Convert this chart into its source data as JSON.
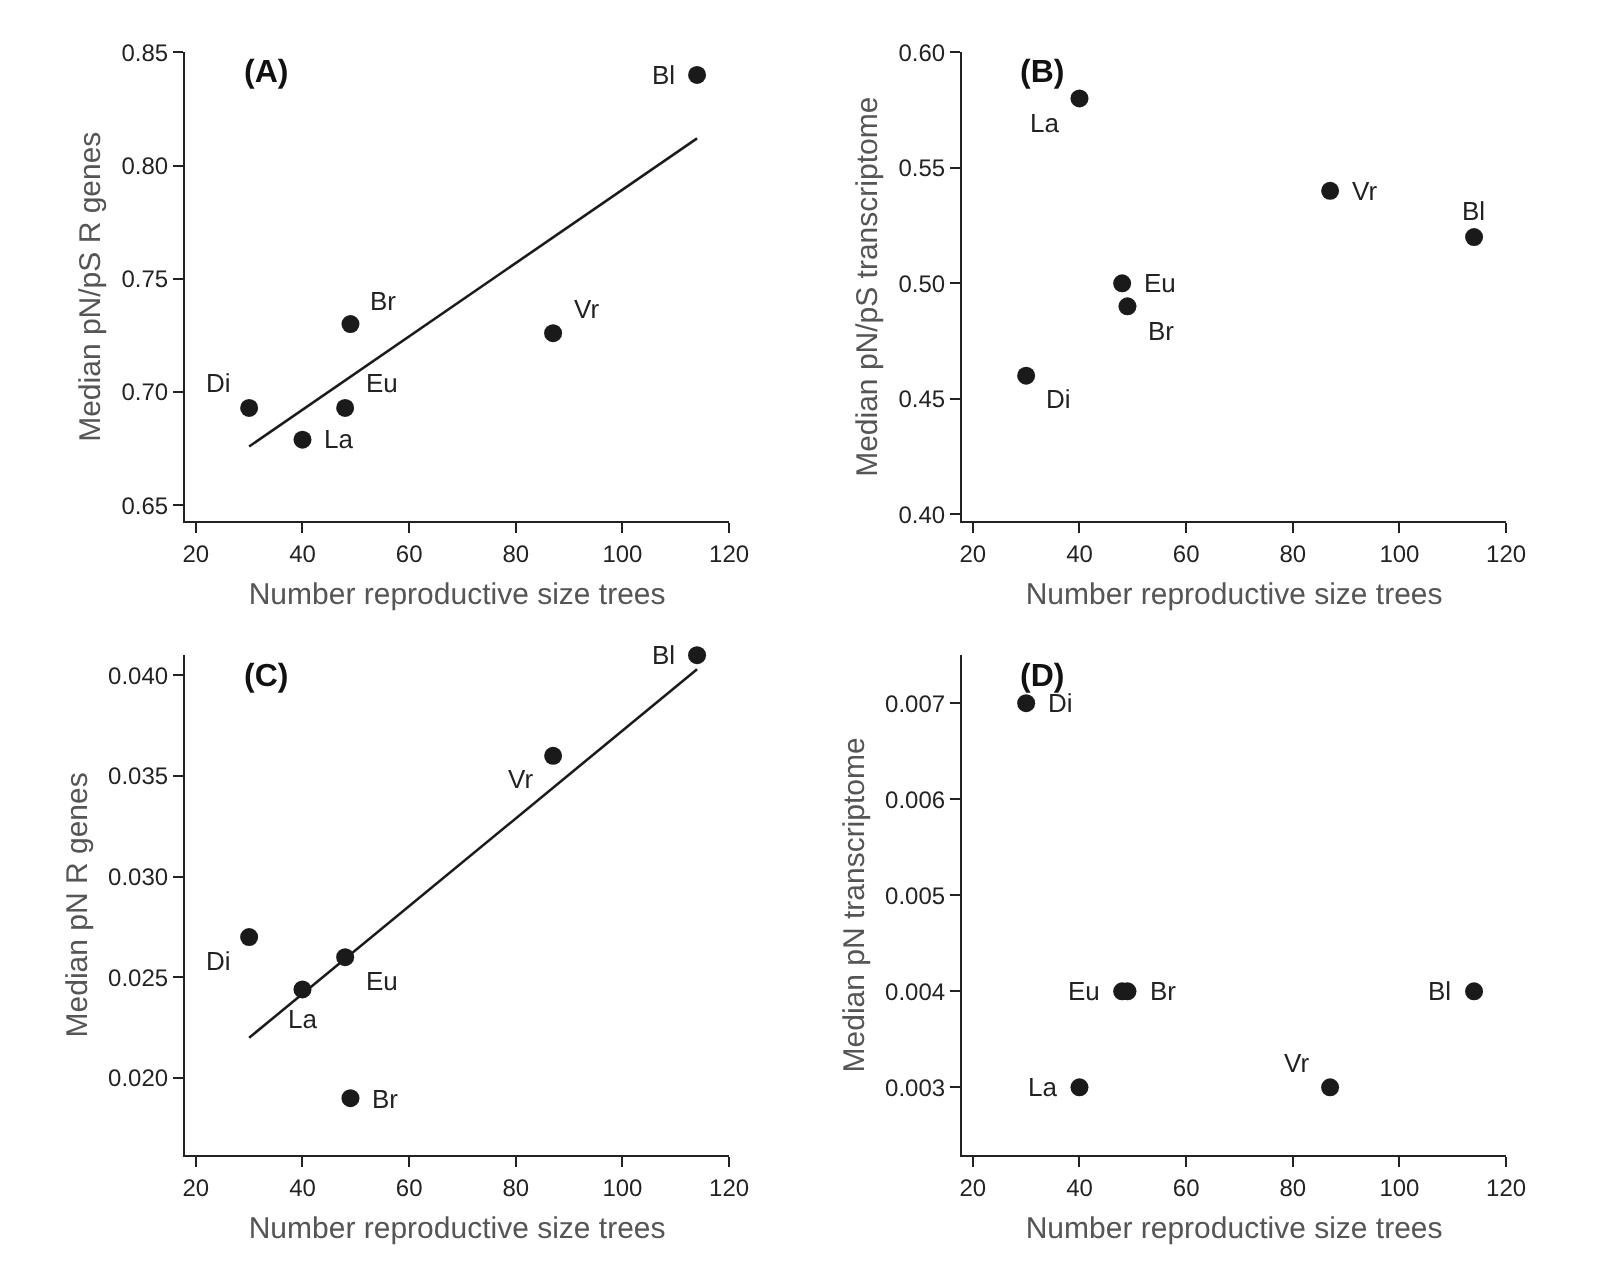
{
  "chart_data": [
    {
      "type": "scatter",
      "title": "(A)",
      "xlabel": "Number reproductive size trees",
      "ylabel": "Median pN/pS R genes",
      "xlim": [
        18,
        120
      ],
      "xticks": [
        20,
        40,
        60,
        80,
        100,
        120
      ],
      "ylim": [
        0.643,
        0.85
      ],
      "yticks": [
        0.65,
        {
          "value": 0.7,
          "label": "0.70"
        },
        0.75,
        {
          "value": 0.8,
          "label": "0.80"
        },
        0.85
      ],
      "series": [
        {
          "color": "#1a1a1a",
          "marker": "circle",
          "x": [
            30,
            40,
            48,
            49,
            87,
            114
          ],
          "values": [
            0.693,
            0.679,
            0.693,
            0.73,
            0.726,
            0.84
          ]
        },
        {
          "type": "line",
          "marker": "none",
          "color": "#1a1a1a",
          "x": [
            30,
            114
          ],
          "values": [
            0.676,
            0.812
          ]
        }
      ],
      "annotations": [
        {
          "text": "Di",
          "x": 30,
          "y": 0.693
        },
        {
          "text": "La",
          "x": 40,
          "y": 0.679
        },
        {
          "text": "Eu",
          "x": 48,
          "y": 0.693
        },
        {
          "text": "Br",
          "x": 49,
          "y": 0.73
        },
        {
          "text": "Vr",
          "x": 87,
          "y": 0.726
        },
        {
          "text": "Bl",
          "x": 114,
          "y": 0.84
        }
      ]
    },
    {
      "type": "scatter",
      "title": "(B)",
      "xlabel": "Number reproductive size trees",
      "ylabel": "Median pN/pS transcriptome",
      "marker": "circle",
      "xlim": [
        18,
        120
      ],
      "xticks": [
        20,
        40,
        60,
        80,
        100,
        120
      ],
      "ylim": [
        0.397,
        0.6
      ],
      "yticks": [
        {
          "value": 0.4,
          "label": "0.40"
        },
        0.45,
        {
          "value": 0.5,
          "label": "0.50"
        },
        0.55,
        {
          "value": 0.6,
          "label": "0.60"
        }
      ],
      "series": [
        {
          "color": "#1a1a1a",
          "x": [
            30,
            40,
            48,
            49,
            87,
            114
          ],
          "values": [
            0.46,
            0.58,
            0.5,
            0.49,
            0.54,
            0.52
          ]
        }
      ],
      "annotations": [
        {
          "text": "Di",
          "x": 30,
          "y": 0.46
        },
        {
          "text": "La",
          "x": 40,
          "y": 0.58
        },
        {
          "text": "Eu",
          "x": 48,
          "y": 0.5
        },
        {
          "text": "Br",
          "x": 49,
          "y": 0.49
        },
        {
          "text": "Vr",
          "x": 87,
          "y": 0.54
        },
        {
          "text": "Bl",
          "x": 114,
          "y": 0.52
        }
      ]
    },
    {
      "type": "scatter",
      "title": "(C)",
      "xlabel": "Number reproductive size trees",
      "ylabel": "Median pN R genes",
      "xlim": [
        18,
        120
      ],
      "xticks": [
        20,
        40,
        60,
        80,
        100,
        120
      ],
      "ylim": [
        0.0162,
        0.041
      ],
      "yticks": [
        {
          "value": 0.02,
          "label": "0.020"
        },
        {
          "value": 0.025,
          "label": "0.025"
        },
        {
          "value": 0.03,
          "label": "0.030"
        },
        {
          "value": 0.035,
          "label": "0.035"
        },
        {
          "value": 0.04,
          "label": "0.040"
        }
      ],
      "series": [
        {
          "color": "#1a1a1a",
          "marker": "circle",
          "x": [
            30,
            40,
            48,
            49,
            87,
            114
          ],
          "values": [
            0.027,
            0.0244,
            0.026,
            0.019,
            0.036,
            0.041
          ]
        },
        {
          "type": "line",
          "marker": "none",
          "color": "#1a1a1a",
          "x": [
            30,
            114
          ],
          "values": [
            0.022,
            0.0403
          ]
        }
      ],
      "annotations": [
        {
          "text": "Di",
          "x": 30,
          "y": 0.027
        },
        {
          "text": "La",
          "x": 40,
          "y": 0.0244
        },
        {
          "text": "Eu",
          "x": 48,
          "y": 0.026
        },
        {
          "text": "Br",
          "x": 49,
          "y": 0.019
        },
        {
          "text": "Vr",
          "x": 87,
          "y": 0.036
        },
        {
          "text": "Bl",
          "x": 114,
          "y": 0.041
        }
      ]
    },
    {
      "type": "scatter",
      "title": "(D)",
      "xlabel": "Number reproductive size trees",
      "ylabel": "Median pN transcriptome",
      "marker": "circle",
      "xlim": [
        18,
        120
      ],
      "xticks": [
        20,
        40,
        60,
        80,
        100,
        120
      ],
      "ylim": [
        0.0023,
        0.0075
      ],
      "yticks": [
        0.003,
        0.004,
        0.005,
        0.006,
        0.007
      ],
      "series": [
        {
          "color": "#1a1a1a",
          "x": [
            30,
            40,
            48,
            49,
            87,
            114
          ],
          "values": [
            0.007,
            0.003,
            0.004,
            0.004,
            0.003,
            0.004
          ]
        }
      ],
      "annotations": [
        {
          "text": "Di",
          "x": 30,
          "y": 0.007
        },
        {
          "text": "La",
          "x": 40,
          "y": 0.003
        },
        {
          "text": "Eu",
          "x": 48,
          "y": 0.004
        },
        {
          "text": "Br",
          "x": 49,
          "y": 0.004
        },
        {
          "text": "Vr",
          "x": 87,
          "y": 0.003
        },
        {
          "text": "Bl",
          "x": 114,
          "y": 0.004
        }
      ]
    }
  ]
}
